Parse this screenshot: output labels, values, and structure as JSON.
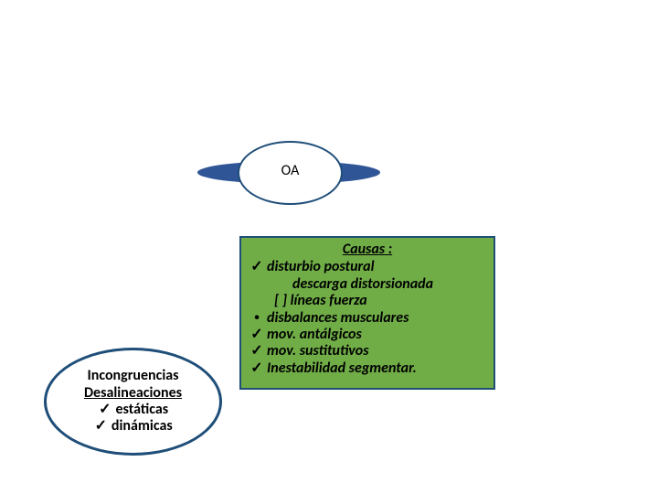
{
  "colors": {
    "ellipse_border": "#1f4e79",
    "oa_back": "#2f5597",
    "panel_fill": "#70ad47",
    "panel_border": "#1f4e79",
    "text": "#000000",
    "bg": "#ffffff"
  },
  "oa": {
    "label": "OA"
  },
  "incongr": {
    "line1": "Incongruencias",
    "line2": "Desalineaciones",
    "bullets": [
      "estáticas",
      "dinámicas"
    ],
    "check": "✓"
  },
  "causes": {
    "title": "Causas :",
    "items": [
      {
        "mark": "✓",
        "text": "disturbio postural"
      },
      {
        "mark": "",
        "text": "descarga distorsionada",
        "indent": "sub"
      },
      {
        "mark": "",
        "text": "[ ] líneas fuerza",
        "indent": "bracket"
      },
      {
        "mark": "•",
        "text": "disbalances musculares"
      },
      {
        "mark": "✓",
        "text": "mov. antálgicos"
      },
      {
        "mark": "✓",
        "text": "mov. sustitutivos"
      },
      {
        "mark": "✓",
        "text": "Inestabilidad segmentar."
      }
    ]
  }
}
